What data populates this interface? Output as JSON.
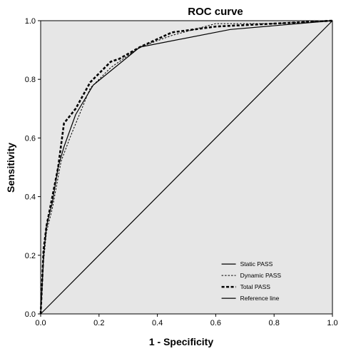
{
  "chart_data": {
    "type": "line",
    "title": "ROC curve",
    "xlabel": "1 - Specificity",
    "ylabel": "Sensitivity",
    "xlim": [
      0,
      1
    ],
    "ylim": [
      0,
      1
    ],
    "xticks": [
      "0.0",
      "0.2",
      "0.4",
      "0.6",
      "0.8",
      "1.0"
    ],
    "yticks": [
      "0.0",
      "0.2",
      "0.4",
      "0.6",
      "0.8",
      "1.0"
    ],
    "grid": false,
    "background_color": "#e6e6e6",
    "legend_position": "bottom-right",
    "series": [
      {
        "name": "Static PASS",
        "style": "solid",
        "x": [
          0,
          0.01,
          0.02,
          0.04,
          0.06,
          0.08,
          0.12,
          0.18,
          0.34,
          0.65,
          1.0
        ],
        "y": [
          0,
          0.2,
          0.3,
          0.38,
          0.5,
          0.57,
          0.68,
          0.78,
          0.91,
          0.97,
          1.0
        ]
      },
      {
        "name": "Dynamic PASS",
        "style": "dashed",
        "x": [
          0,
          0.01,
          0.02,
          0.04,
          0.07,
          0.1,
          0.17,
          0.24,
          0.34,
          0.45,
          0.6,
          0.8,
          1.0
        ],
        "y": [
          0,
          0.18,
          0.28,
          0.36,
          0.52,
          0.6,
          0.77,
          0.84,
          0.91,
          0.95,
          0.99,
          0.99,
          1.0
        ]
      },
      {
        "name": "Total PASS",
        "style": "thick-dashed",
        "x": [
          0,
          0.01,
          0.02,
          0.04,
          0.06,
          0.08,
          0.12,
          0.17,
          0.24,
          0.27,
          0.34,
          0.45,
          0.6,
          0.8,
          1.0
        ],
        "y": [
          0,
          0.22,
          0.3,
          0.4,
          0.5,
          0.65,
          0.7,
          0.79,
          0.86,
          0.87,
          0.91,
          0.96,
          0.98,
          0.99,
          1.0
        ]
      },
      {
        "name": "Reference line",
        "style": "solid",
        "x": [
          0,
          1
        ],
        "y": [
          0,
          1
        ]
      }
    ]
  }
}
